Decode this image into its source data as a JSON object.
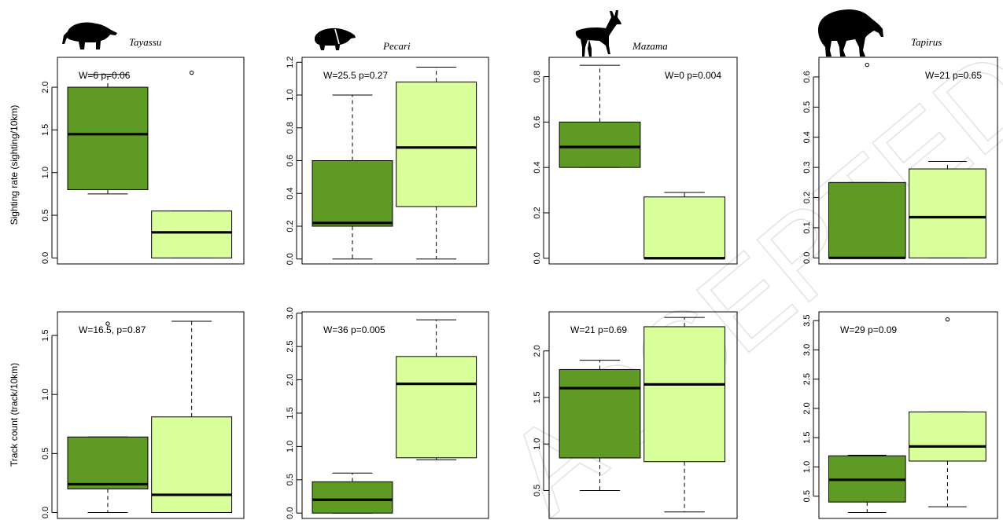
{
  "colors": {
    "group1_fill": "#5e9a24",
    "group2_fill": "#d8ff9a",
    "axis": "#000000"
  },
  "y_labels": {
    "row1": "Sighting rate (sighting/10km)",
    "row2": "Track count (track/10km)"
  },
  "watermark": "ACCEPTED MANUSCRIPT",
  "taxa": [
    {
      "name": "Tayassu",
      "icon": "white-lipped-peccary-silhouette"
    },
    {
      "name": "Pecari",
      "icon": "collared-peccary-silhouette"
    },
    {
      "name": "Mazama",
      "icon": "brocket-deer-silhouette"
    },
    {
      "name": "Tapirus",
      "icon": "tapir-silhouette"
    }
  ],
  "chart_data": [
    {
      "type": "boxplot",
      "taxon": "Tayassu",
      "metric": "sighting",
      "ylabel": "Sighting rate (sighting/10km)",
      "annotation": "W=6 p=0.06",
      "annotation_pos": "top-left",
      "ylim": [
        -0.07,
        2.35
      ],
      "yticks": [
        0.0,
        0.5,
        1.0,
        1.5,
        2.0
      ],
      "tick_labels": [
        "0.0",
        "0.5",
        "1.0",
        "1.5",
        "2.0"
      ],
      "boxes": [
        {
          "whisker_low": 0.75,
          "q1": 0.8,
          "median": 1.45,
          "q3": 2.0,
          "whisker_high": 2.15,
          "outliers": []
        },
        {
          "whisker_low": 0.0,
          "q1": 0.0,
          "median": 0.3,
          "q3": 0.55,
          "whisker_high": 0.55,
          "outliers": [
            2.17
          ]
        }
      ]
    },
    {
      "type": "boxplot",
      "taxon": "Pecari",
      "metric": "sighting",
      "annotation": "W=25.5 p=0.27",
      "annotation_pos": "top-left",
      "ylim": [
        -0.03,
        1.23
      ],
      "yticks": [
        0.0,
        0.2,
        0.4,
        0.6,
        0.8,
        1.0,
        1.2
      ],
      "tick_labels": [
        "0.0",
        "0.2",
        "0.4",
        "0.6",
        "0.8",
        "1.0",
        "1.2"
      ],
      "boxes": [
        {
          "whisker_low": 0.0,
          "q1": 0.2,
          "median": 0.22,
          "q3": 0.6,
          "whisker_high": 1.0,
          "outliers": []
        },
        {
          "whisker_low": 0.0,
          "q1": 0.32,
          "median": 0.68,
          "q3": 1.08,
          "whisker_high": 1.17,
          "outliers": []
        }
      ]
    },
    {
      "type": "boxplot",
      "taxon": "Mazama",
      "metric": "sighting",
      "annotation": "W=0 p=0.004",
      "annotation_pos": "top-right",
      "ylim": [
        -0.025,
        0.885
      ],
      "yticks": [
        0.0,
        0.2,
        0.4,
        0.6,
        0.8
      ],
      "tick_labels": [
        "0.0",
        "0.2",
        "0.4",
        "0.6",
        "0.8"
      ],
      "boxes": [
        {
          "whisker_low": 0.4,
          "q1": 0.4,
          "median": 0.49,
          "q3": 0.6,
          "whisker_high": 0.85,
          "outliers": []
        },
        {
          "whisker_low": 0.0,
          "q1": 0.0,
          "median": 0.0,
          "q3": 0.27,
          "whisker_high": 0.29,
          "outliers": []
        }
      ]
    },
    {
      "type": "boxplot",
      "taxon": "Tapirus",
      "metric": "sighting",
      "annotation": "W=21 p=0.65",
      "annotation_pos": "top-right",
      "ylim": [
        -0.02,
        0.665
      ],
      "yticks": [
        0.0,
        0.1,
        0.2,
        0.3,
        0.4,
        0.5,
        0.6
      ],
      "tick_labels": [
        "0.0",
        "0.1",
        "0.2",
        "0.3",
        "0.4",
        "0.5",
        "0.6"
      ],
      "boxes": [
        {
          "whisker_low": 0.0,
          "q1": 0.0,
          "median": 0.0,
          "q3": 0.25,
          "whisker_high": 0.25,
          "outliers": [
            0.64
          ]
        },
        {
          "whisker_low": 0.0,
          "q1": 0.0,
          "median": 0.135,
          "q3": 0.295,
          "whisker_high": 0.32,
          "outliers": []
        }
      ]
    },
    {
      "type": "boxplot",
      "taxon": "Tayassu",
      "metric": "track",
      "ylabel": "Track count (track/10km)",
      "annotation": "W=16.5, p=0.87",
      "annotation_pos": "top-left",
      "ylim": [
        -0.05,
        1.7
      ],
      "yticks": [
        0.0,
        0.5,
        1.0,
        1.5
      ],
      "tick_labels": [
        "0.0",
        "0.5",
        "1.0",
        "1.5"
      ],
      "boxes": [
        {
          "whisker_low": 0.0,
          "q1": 0.2,
          "median": 0.24,
          "q3": 0.64,
          "whisker_high": 0.64,
          "outliers": [
            1.6
          ]
        },
        {
          "whisker_low": 0.0,
          "q1": 0.0,
          "median": 0.15,
          "q3": 0.81,
          "whisker_high": 1.62,
          "outliers": []
        }
      ]
    },
    {
      "type": "boxplot",
      "taxon": "Pecari",
      "metric": "track",
      "annotation": "W=36 p=0.005",
      "annotation_pos": "top-left",
      "ylim": [
        -0.08,
        3.02
      ],
      "yticks": [
        0.0,
        0.5,
        1.0,
        1.5,
        2.0,
        2.5,
        3.0
      ],
      "tick_labels": [
        "0.0",
        "0.5",
        "1.0",
        "1.5",
        "2.0",
        "2.5",
        "3.0"
      ],
      "boxes": [
        {
          "whisker_low": 0.0,
          "q1": 0.0,
          "median": 0.2,
          "q3": 0.47,
          "whisker_high": 0.6,
          "outliers": []
        },
        {
          "whisker_low": 0.8,
          "q1": 0.83,
          "median": 1.94,
          "q3": 2.35,
          "whisker_high": 2.9,
          "outliers": []
        }
      ]
    },
    {
      "type": "boxplot",
      "taxon": "Mazama",
      "metric": "track",
      "annotation": "W=21 p=0.69",
      "annotation_pos": "top-left",
      "ylim": [
        0.2,
        2.42
      ],
      "yticks": [
        0.5,
        1.0,
        1.5,
        2.0
      ],
      "tick_labels": [
        "0.5",
        "1.0",
        "1.5",
        "2.0"
      ],
      "boxes": [
        {
          "whisker_low": 0.5,
          "q1": 0.85,
          "median": 1.6,
          "q3": 1.8,
          "whisker_high": 1.9,
          "outliers": []
        },
        {
          "whisker_low": 0.27,
          "q1": 0.81,
          "median": 1.64,
          "q3": 2.26,
          "whisker_high": 2.36,
          "outliers": []
        }
      ]
    },
    {
      "type": "boxplot",
      "taxon": "Tapirus",
      "metric": "track",
      "annotation": "W=29 p=0.09",
      "annotation_pos": "top-left",
      "ylim": [
        0.12,
        3.65
      ],
      "yticks": [
        0.5,
        1.0,
        1.5,
        2.0,
        2.5,
        3.0,
        3.5
      ],
      "tick_labels": [
        "0.5",
        "1.0",
        "1.5",
        "2.0",
        "2.5",
        "3.0",
        "3.5"
      ],
      "boxes": [
        {
          "whisker_low": 0.22,
          "q1": 0.4,
          "median": 0.78,
          "q3": 1.19,
          "whisker_high": 1.2,
          "outliers": []
        },
        {
          "whisker_low": 0.32,
          "q1": 1.1,
          "median": 1.35,
          "q3": 1.94,
          "whisker_high": 1.94,
          "outliers": [
            3.52
          ]
        }
      ]
    }
  ]
}
